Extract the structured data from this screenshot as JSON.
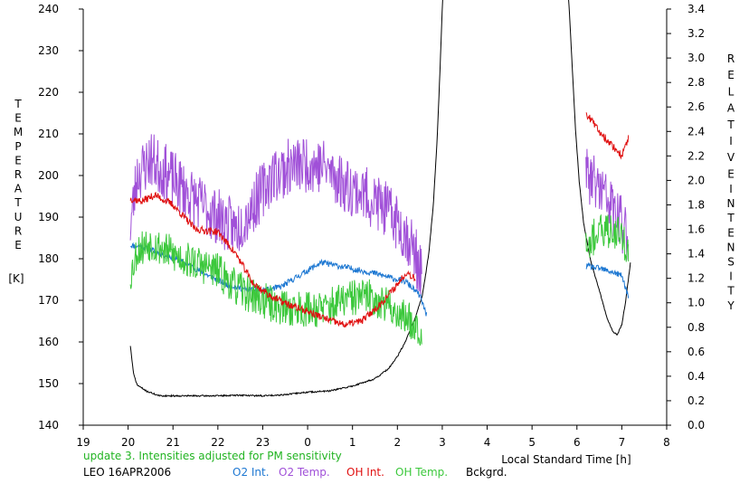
{
  "chart_data": {
    "type": "line",
    "xlabel": "Local Standard Time [h]",
    "x_ticks": [
      "19",
      "20",
      "21",
      "22",
      "23",
      "0",
      "1",
      "2",
      "3",
      "4",
      "5",
      "6",
      "7",
      "8"
    ],
    "xlim": [
      19,
      32
    ],
    "left_axis": {
      "label_letters": [
        "T",
        "E",
        "M",
        "P",
        "E",
        "R",
        "A",
        "T",
        "U",
        "R",
        "E"
      ],
      "unit": "[K]",
      "ticks": [
        "140",
        "150",
        "160",
        "170",
        "180",
        "190",
        "200",
        "210",
        "220",
        "230",
        "240"
      ],
      "ylim": [
        140,
        240
      ]
    },
    "right_axis": {
      "label_letters_1": [
        "R",
        "E",
        "L",
        "A",
        "T",
        "I",
        "V",
        "E"
      ],
      "label_letters_2": [
        "I",
        "N",
        "T",
        "E",
        "N",
        "S",
        "I",
        "T",
        "Y"
      ],
      "ticks": [
        "0.0",
        "0.2",
        "0.4",
        "0.6",
        "0.8",
        "1.0",
        "1.2",
        "1.4",
        "1.6",
        "1.8",
        "2.0",
        "2.2",
        "2.4",
        "2.6",
        "2.8",
        "3.0",
        "3.2",
        "3.4"
      ],
      "ylim": [
        0.0,
        3.4
      ]
    },
    "annotation": "update 3. Intensities adjusted for PM sensitivity",
    "station": "LEO 16APR2006",
    "colors": {
      "o2_int": "#1e78d2",
      "o2_temp": "#a050d8",
      "oh_int": "#e01010",
      "oh_temp": "#3cc83c",
      "bckgrd": "#000000",
      "annotation": "#22b422"
    },
    "series": [
      {
        "name": "O2 Int.",
        "axis": "right",
        "key": "o2_int",
        "noise": 0.025,
        "seed": 11,
        "segments": [
          [
            [
              20.05,
              1.47
            ],
            [
              20.3,
              1.46
            ],
            [
              20.6,
              1.42
            ],
            [
              21.0,
              1.37
            ],
            [
              21.4,
              1.3
            ],
            [
              21.8,
              1.22
            ],
            [
              22.2,
              1.15
            ],
            [
              22.6,
              1.11
            ],
            [
              23.0,
              1.1
            ],
            [
              23.4,
              1.13
            ],
            [
              23.8,
              1.22
            ],
            [
              24.3,
              1.33
            ],
            [
              24.7,
              1.3
            ],
            [
              25.1,
              1.27
            ],
            [
              25.5,
              1.24
            ],
            [
              25.9,
              1.2
            ],
            [
              26.2,
              1.17
            ],
            [
              26.5,
              1.06
            ],
            [
              26.65,
              0.9
            ]
          ],
          [
            [
              30.2,
              1.3
            ],
            [
              30.5,
              1.28
            ],
            [
              30.8,
              1.25
            ],
            [
              31.0,
              1.22
            ],
            [
              31.15,
              1.05
            ]
          ]
        ]
      },
      {
        "name": "O2 Temp.",
        "axis": "left",
        "key": "o2_temp",
        "noise": 7,
        "seed": 23,
        "segments": [
          [
            [
              20.05,
              188
            ],
            [
              20.2,
              200
            ],
            [
              20.5,
              204
            ],
            [
              21.0,
              199
            ],
            [
              21.5,
              194
            ],
            [
              22.0,
              190
            ],
            [
              22.4,
              187
            ],
            [
              22.8,
              193
            ],
            [
              23.2,
              200
            ],
            [
              23.6,
              202
            ],
            [
              24.0,
              203
            ],
            [
              24.4,
              202
            ],
            [
              24.8,
              198
            ],
            [
              25.2,
              196
            ],
            [
              25.6,
              193
            ],
            [
              26.0,
              189
            ],
            [
              26.3,
              184
            ],
            [
              26.55,
              176
            ]
          ],
          [
            [
              30.2,
              200
            ],
            [
              30.5,
              197
            ],
            [
              30.8,
              192
            ],
            [
              31.0,
              188
            ],
            [
              31.15,
              186
            ]
          ]
        ]
      },
      {
        "name": "OH Int.",
        "axis": "right",
        "key": "oh_int",
        "noise": 0.03,
        "seed": 37,
        "segments": [
          [
            [
              20.05,
              1.85
            ],
            [
              20.3,
              1.83
            ],
            [
              20.6,
              1.88
            ],
            [
              21.0,
              1.8
            ],
            [
              21.5,
              1.6
            ],
            [
              22.0,
              1.58
            ],
            [
              22.4,
              1.4
            ],
            [
              22.8,
              1.15
            ],
            [
              23.2,
              1.05
            ],
            [
              23.6,
              0.98
            ],
            [
              24.0,
              0.93
            ],
            [
              24.4,
              0.87
            ],
            [
              24.8,
              0.82
            ],
            [
              25.2,
              0.85
            ],
            [
              25.6,
              0.98
            ],
            [
              26.0,
              1.15
            ],
            [
              26.2,
              1.25
            ],
            [
              26.4,
              1.2
            ]
          ],
          [
            [
              30.2,
              2.55
            ],
            [
              30.5,
              2.4
            ],
            [
              30.8,
              2.28
            ],
            [
              31.0,
              2.2
            ],
            [
              31.15,
              2.35
            ]
          ]
        ]
      },
      {
        "name": "OH Temp.",
        "axis": "left",
        "key": "oh_temp",
        "noise": 4.5,
        "seed": 53,
        "segments": [
          [
            [
              20.05,
              176
            ],
            [
              20.2,
              182
            ],
            [
              20.5,
              184
            ],
            [
              21.0,
              181
            ],
            [
              21.5,
              179
            ],
            [
              22.0,
              177
            ],
            [
              22.4,
              173
            ],
            [
              22.8,
              171
            ],
            [
              23.2,
              169
            ],
            [
              23.6,
              168
            ],
            [
              24.0,
              168
            ],
            [
              24.4,
              168
            ],
            [
              24.8,
              170
            ],
            [
              25.2,
              171
            ],
            [
              25.6,
              170
            ],
            [
              26.0,
              167
            ],
            [
              26.3,
              165
            ],
            [
              26.55,
              163
            ]
          ],
          [
            [
              30.2,
              184
            ],
            [
              30.5,
              186
            ],
            [
              30.8,
              187
            ],
            [
              31.0,
              186
            ],
            [
              31.15,
              181
            ]
          ]
        ]
      },
      {
        "name": "Bckgrd.",
        "axis": "right",
        "key": "bckgrd",
        "noise": 0.006,
        "seed": 71,
        "segments": [
          [
            [
              20.05,
              0.65
            ],
            [
              20.12,
              0.42
            ],
            [
              20.2,
              0.33
            ],
            [
              20.4,
              0.28
            ],
            [
              20.7,
              0.24
            ],
            [
              21.0,
              0.24
            ],
            [
              21.5,
              0.24
            ],
            [
              22.0,
              0.24
            ],
            [
              22.5,
              0.245
            ],
            [
              23.0,
              0.24
            ],
            [
              23.5,
              0.25
            ],
            [
              24.0,
              0.27
            ],
            [
              24.5,
              0.28
            ],
            [
              25.0,
              0.32
            ],
            [
              25.5,
              0.38
            ],
            [
              25.8,
              0.46
            ],
            [
              26.0,
              0.56
            ],
            [
              26.2,
              0.7
            ],
            [
              26.4,
              0.88
            ],
            [
              26.55,
              1.05
            ],
            [
              26.7,
              1.4
            ],
            [
              26.8,
              1.8
            ],
            [
              26.88,
              2.3
            ],
            [
              26.95,
              2.9
            ],
            [
              27.0,
              3.4
            ],
            [
              27.02,
              3.55
            ]
          ],
          [
            [
              29.8,
              3.55
            ],
            [
              29.83,
              3.4
            ],
            [
              29.9,
              2.9
            ],
            [
              29.97,
              2.4
            ],
            [
              30.05,
              2.0
            ],
            [
              30.15,
              1.65
            ],
            [
              30.3,
              1.35
            ],
            [
              30.5,
              1.1
            ],
            [
              30.65,
              0.9
            ],
            [
              30.8,
              0.76
            ],
            [
              30.9,
              0.74
            ],
            [
              31.0,
              0.82
            ],
            [
              31.1,
              1.05
            ],
            [
              31.2,
              1.35
            ]
          ]
        ]
      }
    ],
    "legend_position": "bottom"
  }
}
